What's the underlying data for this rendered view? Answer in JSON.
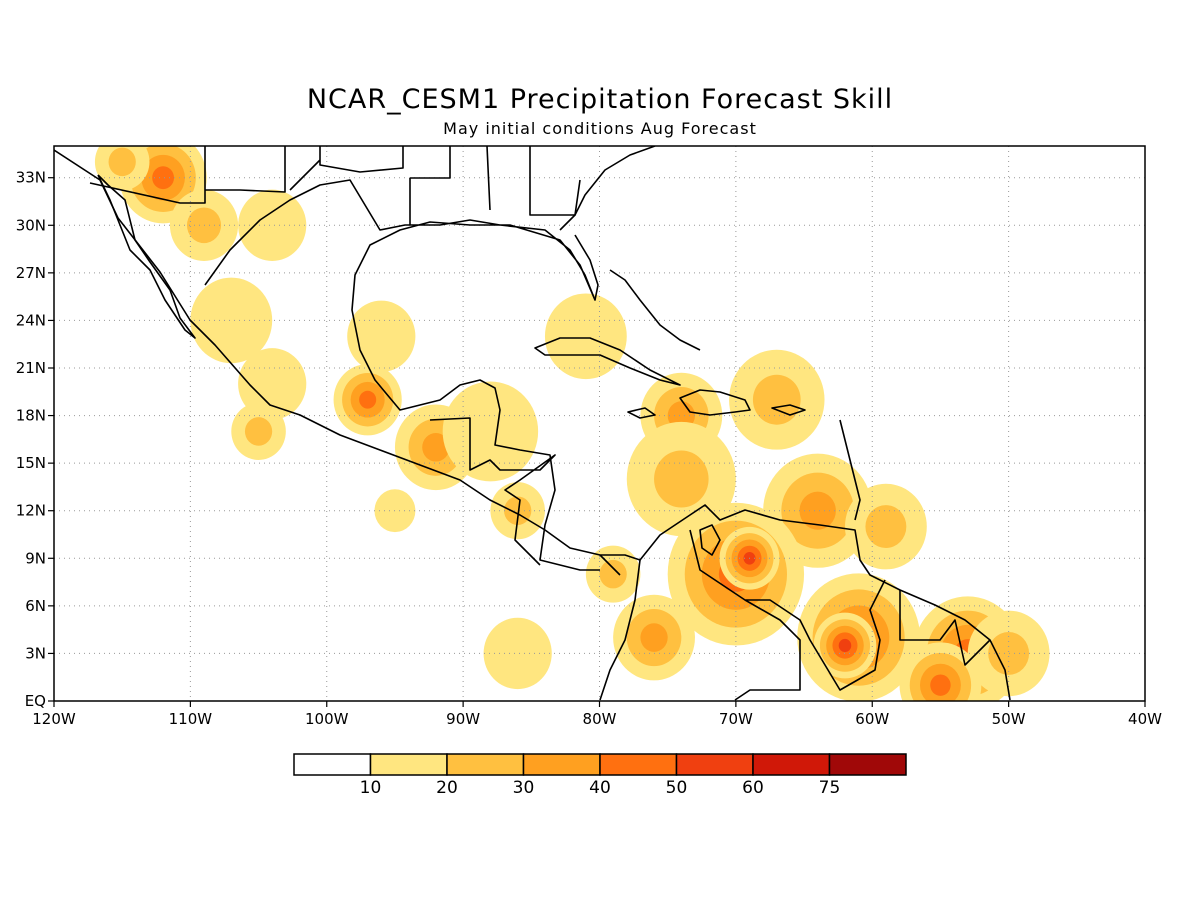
{
  "title": "NCAR_CESM1 Precipitation Forecast Skill",
  "subtitle": "May initial conditions  Aug Forecast",
  "map": {
    "lon_range": [
      -120,
      -40
    ],
    "lat_range": [
      0,
      35
    ],
    "lon_ticks": [
      {
        "value": -120,
        "label": "120W"
      },
      {
        "value": -110,
        "label": "110W"
      },
      {
        "value": -100,
        "label": "100W"
      },
      {
        "value": -90,
        "label": "90W"
      },
      {
        "value": -80,
        "label": "80W"
      },
      {
        "value": -70,
        "label": "70W"
      },
      {
        "value": -60,
        "label": "60W"
      },
      {
        "value": -50,
        "label": "50W"
      },
      {
        "value": -40,
        "label": "40W"
      }
    ],
    "lat_ticks": [
      {
        "value": 0,
        "label": "EQ"
      },
      {
        "value": 3,
        "label": "3N"
      },
      {
        "value": 6,
        "label": "6N"
      },
      {
        "value": 9,
        "label": "9N"
      },
      {
        "value": 12,
        "label": "12N"
      },
      {
        "value": 15,
        "label": "15N"
      },
      {
        "value": 18,
        "label": "18N"
      },
      {
        "value": 21,
        "label": "21N"
      },
      {
        "value": 24,
        "label": "24N"
      },
      {
        "value": 27,
        "label": "27N"
      },
      {
        "value": 30,
        "label": "30N"
      },
      {
        "value": 33,
        "label": "33N"
      }
    ],
    "grid": true
  },
  "colorbar": {
    "labels": [
      "10",
      "20",
      "30",
      "40",
      "50",
      "60",
      "75"
    ],
    "colors": [
      "#ffffff",
      "#ffe680",
      "#ffc040",
      "#ffa020",
      "#ff7010",
      "#f04010",
      "#d01808",
      "#a00808"
    ]
  },
  "skill_blobs": [
    {
      "lon": -112,
      "lat": 33,
      "r": 3.2,
      "value": 45
    },
    {
      "lon": -115,
      "lat": 34,
      "r": 2,
      "value": 25
    },
    {
      "lon": -109,
      "lat": 30,
      "r": 2.5,
      "value": 20
    },
    {
      "lon": -104,
      "lat": 30,
      "r": 2.5,
      "value": 15
    },
    {
      "lon": -107,
      "lat": 24,
      "r": 3,
      "value": 15
    },
    {
      "lon": -104,
      "lat": 20,
      "r": 2.5,
      "value": 15
    },
    {
      "lon": -105,
      "lat": 17,
      "r": 2,
      "value": 25
    },
    {
      "lon": -97,
      "lat": 19,
      "r": 2.5,
      "value": 45
    },
    {
      "lon": -96,
      "lat": 23,
      "r": 2.5,
      "value": 15
    },
    {
      "lon": -92,
      "lat": 16,
      "r": 3,
      "value": 30
    },
    {
      "lon": -88,
      "lat": 17,
      "r": 3.5,
      "value": 15
    },
    {
      "lon": -86,
      "lat": 12,
      "r": 2,
      "value": 25
    },
    {
      "lon": -95,
      "lat": 12,
      "r": 1.5,
      "value": 15
    },
    {
      "lon": -81,
      "lat": 23,
      "r": 3,
      "value": 15
    },
    {
      "lon": -74,
      "lat": 18,
      "r": 3,
      "value": 35
    },
    {
      "lon": -74,
      "lat": 14,
      "r": 4,
      "value": 25
    },
    {
      "lon": -67,
      "lat": 19,
      "r": 3.5,
      "value": 25
    },
    {
      "lon": -64,
      "lat": 12,
      "r": 4,
      "value": 30
    },
    {
      "lon": -59,
      "lat": 11,
      "r": 3,
      "value": 20
    },
    {
      "lon": -70,
      "lat": 8,
      "r": 5,
      "value": 45
    },
    {
      "lon": -69,
      "lat": 9,
      "r": 2.2,
      "value": 55
    },
    {
      "lon": -61,
      "lat": 4,
      "r": 4.5,
      "value": 45
    },
    {
      "lon": -62,
      "lat": 3.5,
      "r": 2.3,
      "value": 55
    },
    {
      "lon": -53,
      "lat": 3,
      "r": 4,
      "value": 40
    },
    {
      "lon": -50,
      "lat": 3,
      "r": 3,
      "value": 25
    },
    {
      "lon": -55,
      "lat": 1,
      "r": 3,
      "value": 45
    },
    {
      "lon": -76,
      "lat": 4,
      "r": 3,
      "value": 35
    },
    {
      "lon": -79,
      "lat": 8,
      "r": 2,
      "value": 20
    },
    {
      "lon": -86,
      "lat": 3,
      "r": 2.5,
      "value": 10
    }
  ]
}
